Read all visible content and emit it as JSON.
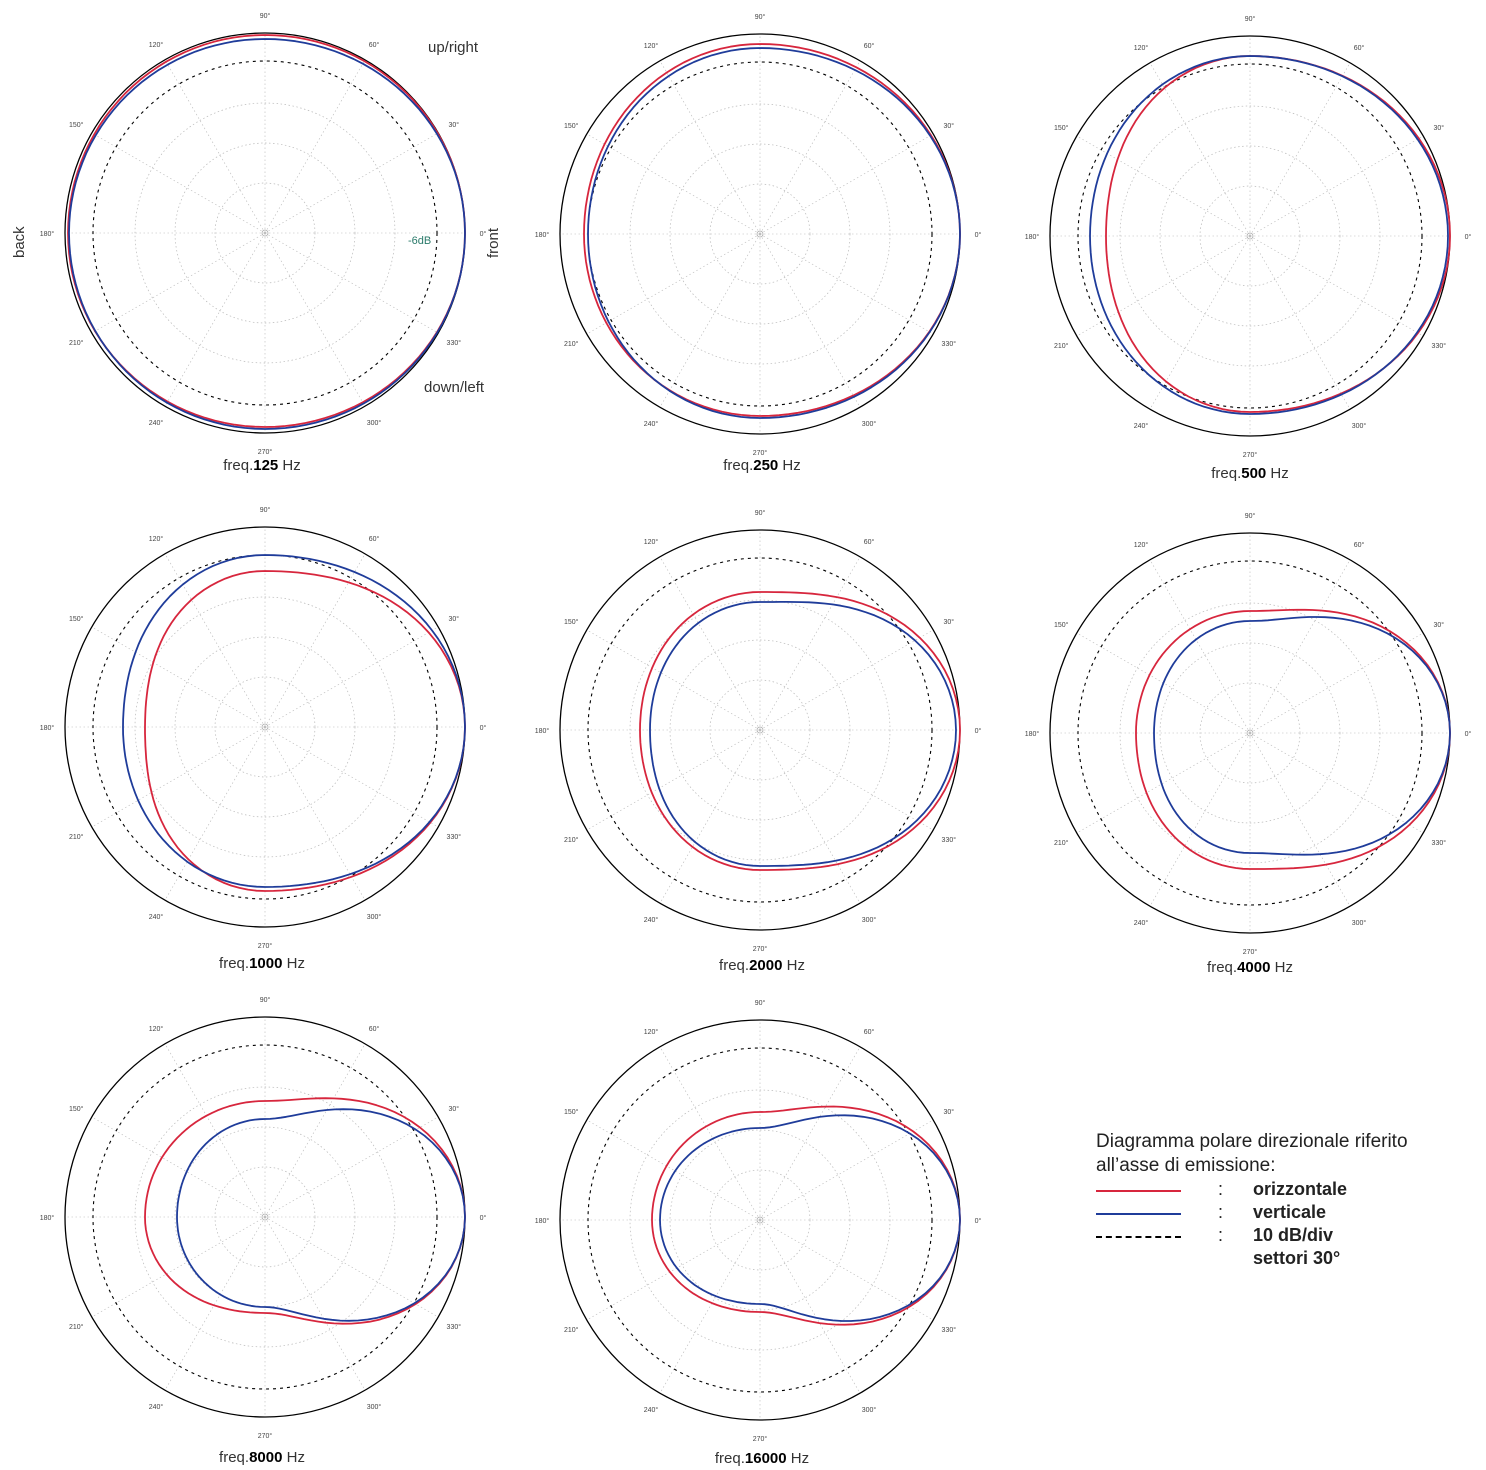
{
  "colors": {
    "horizontal": "#d7263d",
    "vertical": "#1f3c9a",
    "grid": "#b8b8b8",
    "rings": "#000000",
    "db_label": "#2a7a6a"
  },
  "side_labels": {
    "up": "up/right",
    "down": "down/left",
    "back": "back",
    "front": "front"
  },
  "db_label": "-6dB",
  "legend": {
    "title": "Diagramma polare direzionale riferito all’asse di emissione:",
    "entries": [
      {
        "swatch": "red",
        "label": "orizzontale"
      },
      {
        "swatch": "blue",
        "label": "verticale"
      },
      {
        "swatch": "dash",
        "label": "10 dB/div"
      },
      {
        "swatch": "none",
        "label": "settori 30°"
      }
    ]
  },
  "chart_data": [
    {
      "type": "polar",
      "caption_prefix": "freq.",
      "frequency": "125",
      "caption_unit": " Hz",
      "angle_labels": [
        "0°",
        "30°",
        "60°",
        "90°",
        "120°",
        "150°",
        "180°",
        "210°",
        "240°",
        "270°",
        "300°",
        "330°"
      ],
      "series": [
        {
          "name": "orizzontale",
          "r_at": [
            [
              0,
              1.0
            ],
            [
              90,
              0.99
            ],
            [
              180,
              0.985
            ],
            [
              270,
              0.97
            ]
          ]
        },
        {
          "name": "verticale",
          "r_at": [
            [
              0,
              1.0
            ],
            [
              90,
              0.97
            ],
            [
              180,
              0.98
            ],
            [
              270,
              0.98
            ]
          ]
        }
      ]
    },
    {
      "type": "polar",
      "caption_prefix": "freq.",
      "frequency": "250",
      "caption_unit": " Hz",
      "angle_labels": [
        "0°",
        "30°",
        "60°",
        "90°",
        "120°",
        "150°",
        "180°",
        "210°",
        "240°",
        "270°",
        "300°",
        "330°"
      ],
      "series": [
        {
          "name": "orizzontale",
          "r_at": [
            [
              0,
              1.0
            ],
            [
              90,
              0.95
            ],
            [
              180,
              0.88
            ],
            [
              270,
              0.91
            ]
          ]
        },
        {
          "name": "verticale",
          "r_at": [
            [
              0,
              1.0
            ],
            [
              90,
              0.93
            ],
            [
              180,
              0.86
            ],
            [
              270,
              0.92
            ]
          ]
        }
      ]
    },
    {
      "type": "polar",
      "caption_prefix": "freq.",
      "frequency": "500",
      "caption_unit": " Hz",
      "angle_labels": [
        "0°",
        "30°",
        "60°",
        "90°",
        "120°",
        "150°",
        "180°",
        "210°",
        "240°",
        "270°",
        "300°",
        "330°"
      ],
      "series": [
        {
          "name": "orizzontale",
          "r_at": [
            [
              0,
              1.0
            ],
            [
              90,
              0.9
            ],
            [
              180,
              0.72
            ],
            [
              270,
              0.88
            ]
          ]
        },
        {
          "name": "verticale",
          "r_at": [
            [
              0,
              0.99
            ],
            [
              90,
              0.9
            ],
            [
              180,
              0.8
            ],
            [
              270,
              0.89
            ]
          ]
        }
      ]
    },
    {
      "type": "polar",
      "caption_prefix": "freq.",
      "frequency": "1000",
      "caption_unit": " Hz",
      "angle_labels": [
        "0°",
        "30°",
        "60°",
        "90°",
        "120°",
        "150°",
        "180°",
        "210°",
        "240°",
        "270°",
        "300°",
        "330°"
      ],
      "series": [
        {
          "name": "orizzontale",
          "r_at": [
            [
              0,
              1.0
            ],
            [
              90,
              0.78
            ],
            [
              180,
              0.6
            ],
            [
              270,
              0.82
            ]
          ]
        },
        {
          "name": "verticale",
          "r_at": [
            [
              0,
              1.0
            ],
            [
              90,
              0.86
            ],
            [
              180,
              0.71
            ],
            [
              270,
              0.8
            ]
          ]
        }
      ]
    },
    {
      "type": "polar",
      "caption_prefix": "freq.",
      "frequency": "2000",
      "caption_unit": " Hz",
      "angle_labels": [
        "0°",
        "30°",
        "60°",
        "90°",
        "120°",
        "150°",
        "180°",
        "210°",
        "240°",
        "270°",
        "300°",
        "330°"
      ],
      "series": [
        {
          "name": "orizzontale",
          "r_at": [
            [
              0,
              1.0
            ],
            [
              90,
              0.69
            ],
            [
              180,
              0.6
            ],
            [
              270,
              0.7
            ]
          ]
        },
        {
          "name": "verticale",
          "r_at": [
            [
              0,
              0.98
            ],
            [
              90,
              0.64
            ],
            [
              180,
              0.55
            ],
            [
              270,
              0.68
            ]
          ]
        }
      ]
    },
    {
      "type": "polar",
      "caption_prefix": "freq.",
      "frequency": "4000",
      "caption_unit": " Hz",
      "angle_labels": [
        "0°",
        "30°",
        "60°",
        "90°",
        "120°",
        "150°",
        "180°",
        "210°",
        "240°",
        "270°",
        "300°",
        "330°"
      ],
      "series": [
        {
          "name": "orizzontale",
          "r_at": [
            [
              0,
              1.0
            ],
            [
              90,
              0.61
            ],
            [
              180,
              0.57
            ],
            [
              270,
              0.68
            ]
          ]
        },
        {
          "name": "verticale",
          "r_at": [
            [
              0,
              1.0
            ],
            [
              90,
              0.56
            ],
            [
              180,
              0.48
            ],
            [
              270,
              0.6
            ]
          ]
        }
      ]
    },
    {
      "type": "polar",
      "caption_prefix": "freq.",
      "frequency": "8000",
      "caption_unit": " Hz",
      "angle_labels": [
        "0°",
        "30°",
        "60°",
        "90°",
        "120°",
        "150°",
        "180°",
        "210°",
        "240°",
        "270°",
        "300°",
        "330°"
      ],
      "series": [
        {
          "name": "orizzontale",
          "r_at": [
            [
              0,
              1.0
            ],
            [
              90,
              0.58
            ],
            [
              180,
              0.6
            ],
            [
              270,
              0.48
            ]
          ]
        },
        {
          "name": "verticale",
          "r_at": [
            [
              0,
              1.0
            ],
            [
              90,
              0.49
            ],
            [
              180,
              0.44
            ],
            [
              270,
              0.45
            ]
          ]
        }
      ]
    },
    {
      "type": "polar",
      "caption_prefix": "freq.",
      "frequency": "16000",
      "caption_unit": " Hz",
      "angle_labels": [
        "0°",
        "30°",
        "60°",
        "90°",
        "120°",
        "150°",
        "180°",
        "210°",
        "240°",
        "270°",
        "300°",
        "330°"
      ],
      "series": [
        {
          "name": "orizzontale",
          "r_at": [
            [
              0,
              1.0
            ],
            [
              90,
              0.54
            ],
            [
              180,
              0.54
            ],
            [
              270,
              0.46
            ]
          ]
        },
        {
          "name": "verticale",
          "r_at": [
            [
              0,
              1.0
            ],
            [
              90,
              0.46
            ],
            [
              180,
              0.5
            ],
            [
              270,
              0.42
            ]
          ]
        }
      ]
    }
  ]
}
